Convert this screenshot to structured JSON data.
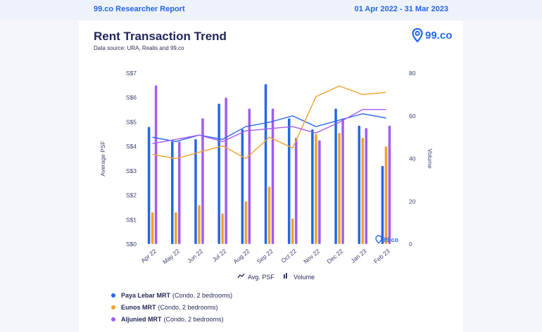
{
  "header": {
    "report_name": "99.co Researcher Report",
    "date_range": "01 Apr 2022 - 31 Mar 2023"
  },
  "brand": {
    "logo_text": "99.co"
  },
  "colors": {
    "paya_lebar": "#2466e8",
    "eunos": "#f4a12a",
    "aljunied": "#a25cf2",
    "axis_text": "#3b4170"
  },
  "chart_data": {
    "type": "bar",
    "title": "Rent Transaction Trend",
    "subtitle": "Data source: URA, Realis and 99.co",
    "categories": [
      "Apr 22",
      "May 22",
      "Jun 22",
      "Jul 22",
      "Aug 22",
      "Sep 22",
      "Oct 22",
      "Nov 22",
      "Dec 22",
      "Jan 23",
      "Feb 23"
    ],
    "ylabel": "Average PSF",
    "y2label": "Volume",
    "ylim": [
      0,
      7
    ],
    "y_ticks": [
      "S$0",
      "S$1",
      "S$2",
      "S$3",
      "S$4",
      "S$5",
      "S$6",
      "S$7"
    ],
    "y2lim": [
      0,
      80
    ],
    "y2_ticks": [
      "0",
      "20",
      "40",
      "60",
      "80"
    ],
    "series": [
      {
        "name": "Paya Lebar MRT",
        "detail": "(Condo, 2 bedrooms)",
        "color_key": "paya_lebar",
        "psf": [
          4.8,
          4.2,
          4.3,
          5.75,
          4.7,
          6.55,
          5.15,
          4.7,
          5.55,
          4.85,
          3.2
        ],
        "volume": [
          50,
          48,
          51,
          49,
          55,
          57,
          60,
          55,
          58,
          61,
          59
        ]
      },
      {
        "name": "Eunos MRT",
        "detail": "(Condo, 2 bedrooms)",
        "color_key": "eunos",
        "psf": [
          1.3,
          1.3,
          1.6,
          1.25,
          1.75,
          2.35,
          1.05,
          4.5,
          4.55,
          4.35,
          4.0
        ],
        "volume": [
          42,
          40,
          43,
          46,
          40,
          50,
          45,
          69,
          74,
          70,
          71
        ]
      },
      {
        "name": "Aljunied MRT",
        "detail": "(Condo, 2 bedrooms)",
        "color_key": "aljunied",
        "psf": [
          6.5,
          4.2,
          5.15,
          6.0,
          5.55,
          5.55,
          4.35,
          4.25,
          5.15,
          4.75,
          4.85
        ],
        "volume": [
          47,
          49,
          51,
          48,
          53,
          54,
          55,
          52,
          57,
          63,
          63
        ]
      }
    ],
    "legend_types": [
      "Avg. PSF",
      "Volume"
    ],
    "watermark": "99.co"
  }
}
